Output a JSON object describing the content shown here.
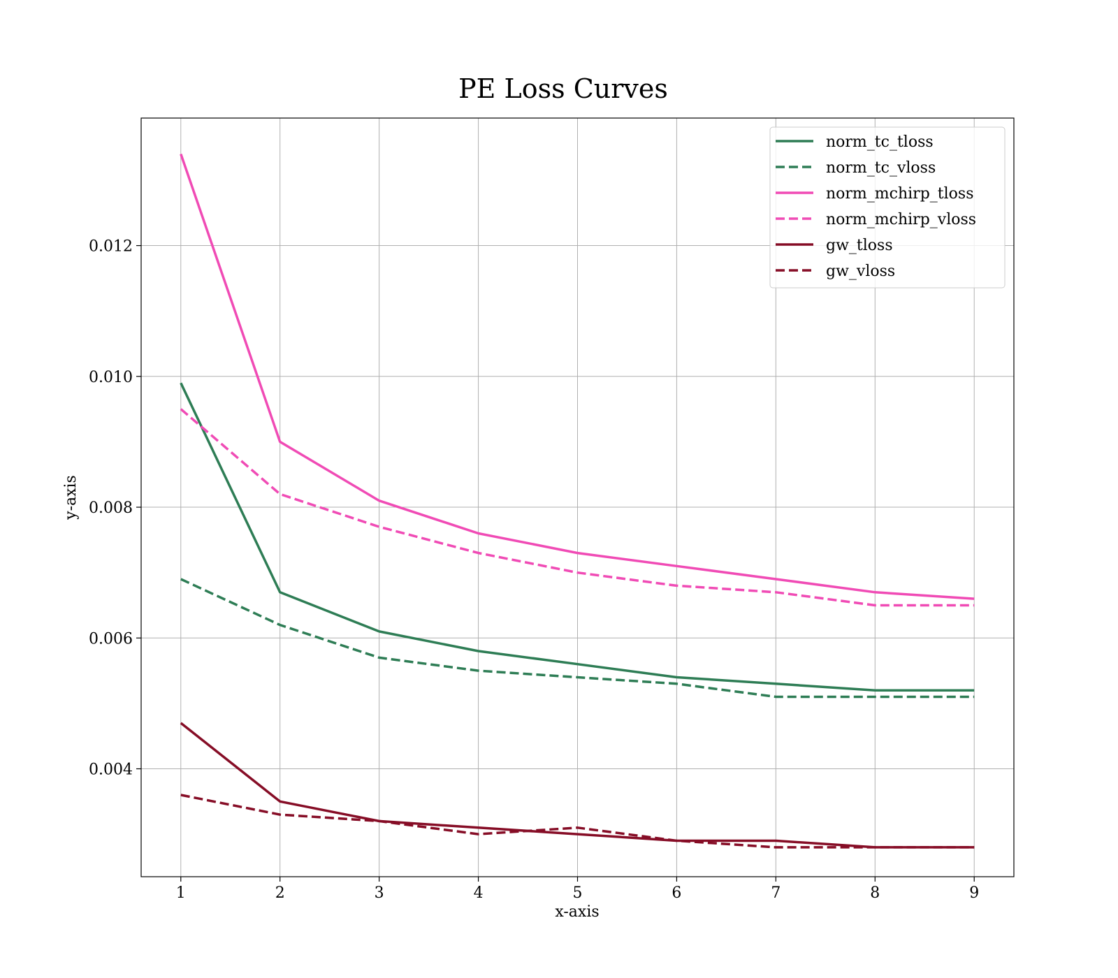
{
  "chart_data": {
    "type": "line",
    "title": "PE Loss Curves",
    "xlabel": "x-axis",
    "ylabel": "y-axis",
    "x": [
      1,
      2,
      3,
      4,
      5,
      6,
      7,
      8,
      9
    ],
    "xlim": [
      0.6,
      9.4
    ],
    "ylim": [
      0.00235,
      0.01395
    ],
    "xticks": [
      "1",
      "2",
      "3",
      "4",
      "5",
      "6",
      "7",
      "8",
      "9"
    ],
    "yticks": [
      0.004,
      0.006,
      0.008,
      0.01,
      0.012
    ],
    "ytick_labels": [
      "0.004",
      "0.006",
      "0.008",
      "0.010",
      "0.012"
    ],
    "grid": true,
    "legend_position": "top-right",
    "series": [
      {
        "name": "norm_tc_tloss",
        "color": "#2e7d55",
        "style": "solid",
        "values": [
          0.0099,
          0.0067,
          0.0061,
          0.0058,
          0.0056,
          0.0054,
          0.0053,
          0.0052,
          0.0052
        ]
      },
      {
        "name": "norm_tc_vloss",
        "color": "#2e7d55",
        "style": "dashed",
        "values": [
          0.0069,
          0.0062,
          0.0057,
          0.0055,
          0.0054,
          0.0053,
          0.0051,
          0.0051,
          0.0051
        ]
      },
      {
        "name": "norm_mchirp_tloss",
        "color": "#f04bb5",
        "style": "solid",
        "values": [
          0.0134,
          0.009,
          0.0081,
          0.0076,
          0.0073,
          0.0071,
          0.0069,
          0.0067,
          0.0066
        ]
      },
      {
        "name": "norm_mchirp_vloss",
        "color": "#f04bb5",
        "style": "dashed",
        "values": [
          0.0095,
          0.0082,
          0.0077,
          0.0073,
          0.007,
          0.0068,
          0.0067,
          0.0065,
          0.0065
        ]
      },
      {
        "name": "gw_tloss",
        "color": "#860d26",
        "style": "solid",
        "values": [
          0.0047,
          0.0035,
          0.0032,
          0.0031,
          0.003,
          0.0029,
          0.0029,
          0.0028,
          0.0028
        ]
      },
      {
        "name": "gw_vloss",
        "color": "#860d26",
        "style": "dashed",
        "values": [
          0.0036,
          0.0033,
          0.0032,
          0.003,
          0.0031,
          0.0029,
          0.0028,
          0.0028,
          0.0028
        ]
      }
    ]
  }
}
